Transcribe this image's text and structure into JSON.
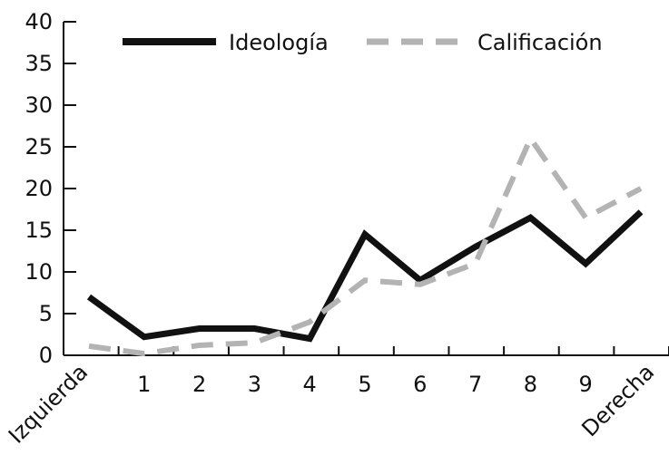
{
  "chart_data": {
    "type": "line",
    "categories": [
      "Izquierda",
      "1",
      "2",
      "3",
      "4",
      "5",
      "6",
      "7",
      "8",
      "9",
      "Derecha"
    ],
    "y_ticks": [
      "0",
      "5",
      "10",
      "15",
      "20",
      "25",
      "30",
      "35",
      "40"
    ],
    "ylim": [
      0,
      40
    ],
    "grid": false,
    "legend_position": "top",
    "series": [
      {
        "name": "Ideología",
        "values": [
          7,
          2.2,
          3.2,
          3.2,
          2,
          14.5,
          9,
          13,
          16.5,
          11,
          17.2
        ],
        "color": "#111111",
        "style": "solid"
      },
      {
        "name": "Calificación",
        "values": [
          1.1,
          0.2,
          1.2,
          1.5,
          4,
          9,
          8.5,
          11,
          26,
          16.5,
          20
        ],
        "color": "#b3b3b3",
        "style": "dashed"
      }
    ]
  }
}
